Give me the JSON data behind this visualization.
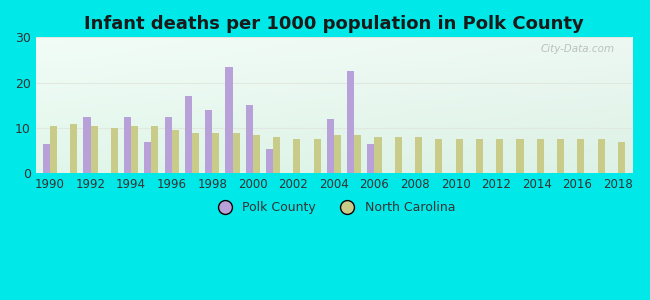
{
  "title": "Infant deaths per 1000 population in Polk County",
  "years": [
    1990,
    1991,
    1992,
    1993,
    1994,
    1995,
    1996,
    1997,
    1998,
    1999,
    2000,
    2001,
    2002,
    2003,
    2004,
    2005,
    2006,
    2007,
    2008,
    2009,
    2010,
    2011,
    2012,
    2013,
    2014,
    2015,
    2016,
    2017,
    2018
  ],
  "polk_county": [
    6.5,
    0,
    12.5,
    0,
    12.5,
    7.0,
    12.5,
    17.0,
    14.0,
    23.5,
    15.0,
    5.5,
    0,
    0,
    12.0,
    22.5,
    6.5,
    0,
    0,
    0,
    0,
    0,
    0,
    0,
    0,
    0,
    0,
    0,
    0
  ],
  "north_carolina": [
    10.5,
    11.0,
    10.5,
    10.0,
    10.5,
    10.5,
    9.5,
    9.0,
    9.0,
    9.0,
    8.5,
    8.0,
    7.5,
    7.5,
    8.5,
    8.5,
    8.0,
    8.0,
    8.0,
    7.5,
    7.5,
    7.5,
    7.5,
    7.5,
    7.5,
    7.5,
    7.5,
    7.5,
    7.0
  ],
  "polk_color": "#b8a0d8",
  "nc_color": "#c8cc88",
  "ylim": [
    0,
    30
  ],
  "yticks": [
    0,
    10,
    20,
    30
  ],
  "bg_color_topleft": "#d0eef0",
  "bg_color_topright": "#e8f5ee",
  "bg_color_bottom": "#c8ecd8",
  "outer_background": "#00e8e8",
  "title_fontsize": 13,
  "watermark": "City-Data.com",
  "grid_color": "#e0e8e0",
  "bar_width": 0.35
}
